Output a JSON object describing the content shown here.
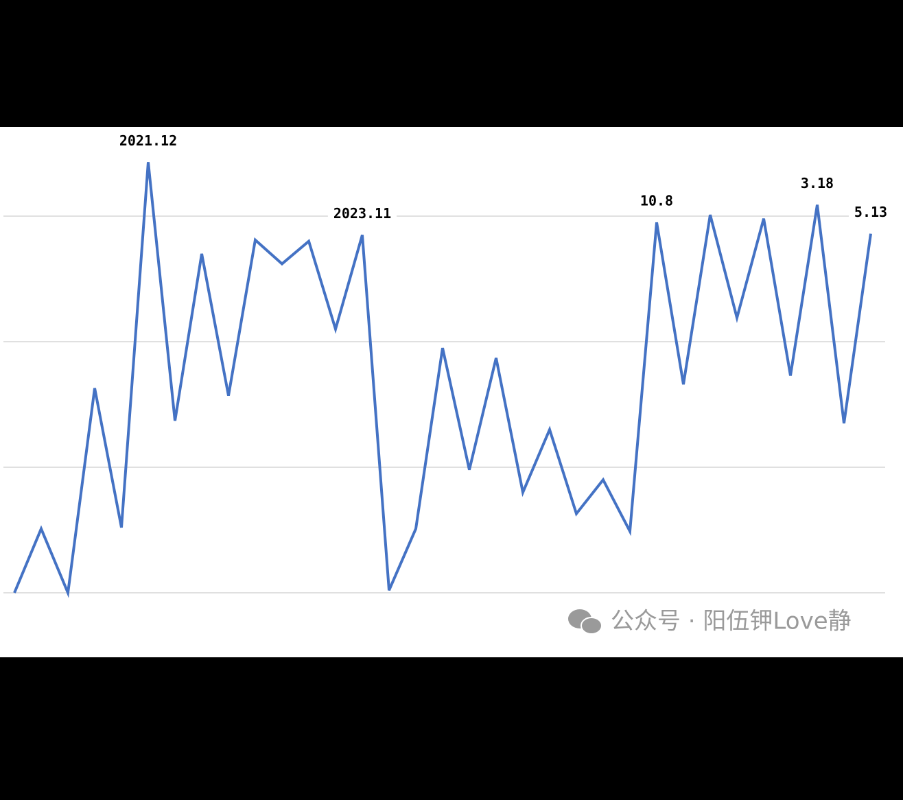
{
  "chart_data": {
    "type": "line",
    "categories": [
      null,
      null,
      null,
      null,
      null,
      "2021.12",
      null,
      null,
      null,
      null,
      null,
      null,
      null,
      "2023.11",
      null,
      null,
      null,
      null,
      null,
      null,
      null,
      null,
      null,
      null,
      "10.8",
      null,
      null,
      null,
      null,
      null,
      "3.18",
      null,
      "5.13"
    ],
    "series": [
      {
        "color": "#4472c4",
        "values": [
          0,
          0.51,
          0,
          1.63,
          0.52,
          3.43,
          1.37,
          2.7,
          1.57,
          2.81,
          2.62,
          2.8,
          2.1,
          2.85,
          0.02,
          0.51,
          1.95,
          0.98,
          1.87,
          0.8,
          1.3,
          0.63,
          0.9,
          0.49,
          2.95,
          1.66,
          3.01,
          2.19,
          2.98,
          1.73,
          3.09,
          1.35,
          2.86
        ]
      }
    ],
    "ylim": [
      -0.5,
      3.7
    ],
    "yticks": [
      0,
      1,
      2,
      3
    ],
    "grid": true,
    "watermark": "公众号 · 阳伍钾Love静"
  }
}
